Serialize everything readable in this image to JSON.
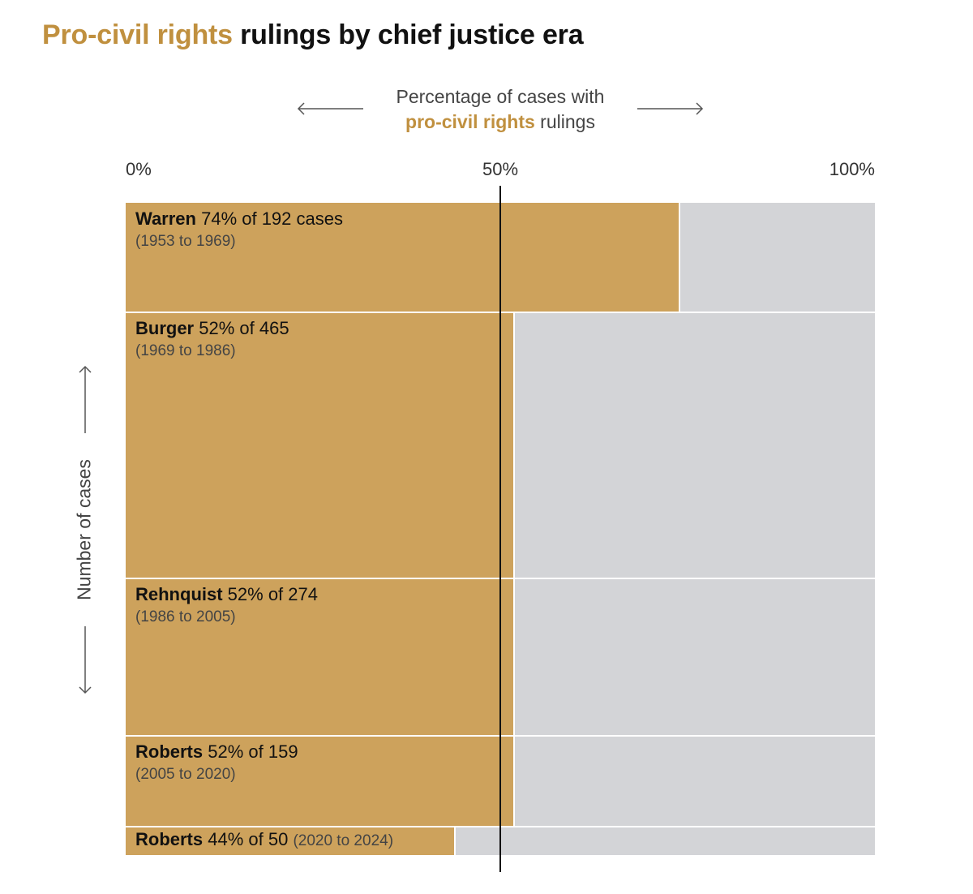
{
  "title": {
    "accent": "Pro-civil rights",
    "rest": " rulings by chief justice era"
  },
  "axis": {
    "caption_line1": "Percentage of cases with",
    "caption_accent": "pro-civil rights",
    "caption_rest": " rulings",
    "y_label": "Number of cases",
    "ticks": [
      "0%",
      "50%",
      "100%"
    ]
  },
  "colors": {
    "accent": "#cda25c",
    "accent_text": "#c0903f",
    "remainder": "#d3d4d7",
    "midline": "#111111"
  },
  "chart_data": {
    "type": "bar",
    "subtype": "marimekko (bar height proportional to number of cases)",
    "title": "Pro-civil rights rulings by chief justice era",
    "xlabel": "Percentage of cases with pro-civil rights rulings",
    "ylabel": "Number of cases",
    "xlim": [
      0,
      100
    ],
    "reference_line": 50,
    "series": [
      {
        "name": "Warren",
        "percent": 74,
        "cases": 192,
        "stat": " 74% of 192 cases",
        "years": "(1953 to 1969)",
        "years_inline": false
      },
      {
        "name": "Burger",
        "percent": 52,
        "cases": 465,
        "stat": " 52% of 465",
        "years": "(1969 to 1986)",
        "years_inline": false
      },
      {
        "name": "Rehnquist",
        "percent": 52,
        "cases": 274,
        "stat": " 52% of 274",
        "years": "(1986 to 2005)",
        "years_inline": false
      },
      {
        "name": "Roberts",
        "percent": 52,
        "cases": 159,
        "stat": " 52% of 159",
        "years": "(2005 to 2020)",
        "years_inline": false
      },
      {
        "name": "Roberts",
        "percent": 44,
        "cases": 50,
        "stat": " 44% of 50",
        "years": "(2020 to 2024)",
        "years_inline": true
      }
    ]
  }
}
